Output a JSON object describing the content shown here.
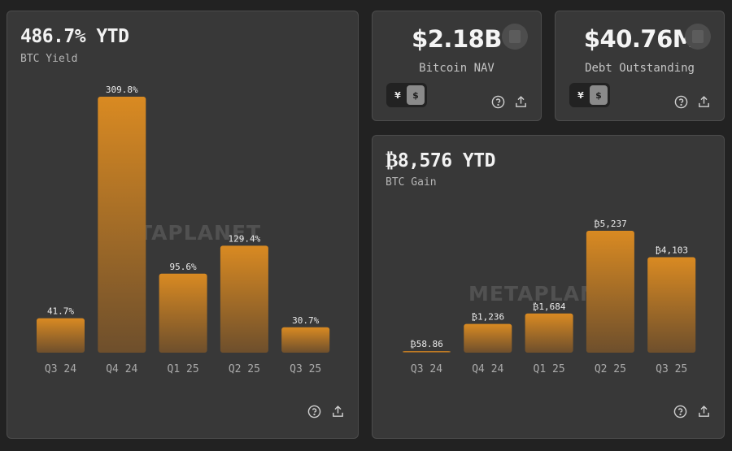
{
  "icons": {
    "help": "help-circle-icon",
    "share": "share-upload-icon",
    "badge": "badge-icon"
  },
  "colors": {
    "bar_top": "#d98a22",
    "bar_bottom": "#6e4f2c",
    "card": "#383838",
    "bg": "#222222"
  },
  "watermark": "METAPLANET",
  "nav": {
    "value": "$2.18B",
    "label": "Bitcoin NAV",
    "toggle": [
      "¥",
      "$"
    ],
    "active_currency": "$"
  },
  "debt": {
    "value": "$40.76M",
    "label": "Debt Outstanding",
    "toggle": [
      "¥",
      "$"
    ],
    "active_currency": "$"
  },
  "chart_data": [
    {
      "type": "bar",
      "title": "486.7% YTD",
      "subtitle": "BTC Yield",
      "categories": [
        "Q3 24",
        "Q4 24",
        "Q1 25",
        "Q2 25",
        "Q3 25"
      ],
      "values": [
        41.7,
        309.8,
        95.6,
        129.4,
        30.7
      ],
      "data_labels": [
        "41.7%",
        "309.8%",
        "95.6%",
        "129.4%",
        "30.7%"
      ],
      "ylim": [
        0,
        309.8
      ],
      "grid": false
    },
    {
      "type": "bar",
      "title": "₿8,576 YTD",
      "subtitle": "BTC Gain",
      "categories": [
        "Q3 24",
        "Q4 24",
        "Q1 25",
        "Q2 25",
        "Q3 25"
      ],
      "values": [
        58.86,
        1236,
        1684,
        5237,
        4103
      ],
      "data_labels": [
        "₿58.86",
        "₿1,236",
        "₿1,684",
        "₿5,237",
        "₿4,103"
      ],
      "ylim": [
        0,
        5237
      ],
      "grid": false
    }
  ]
}
